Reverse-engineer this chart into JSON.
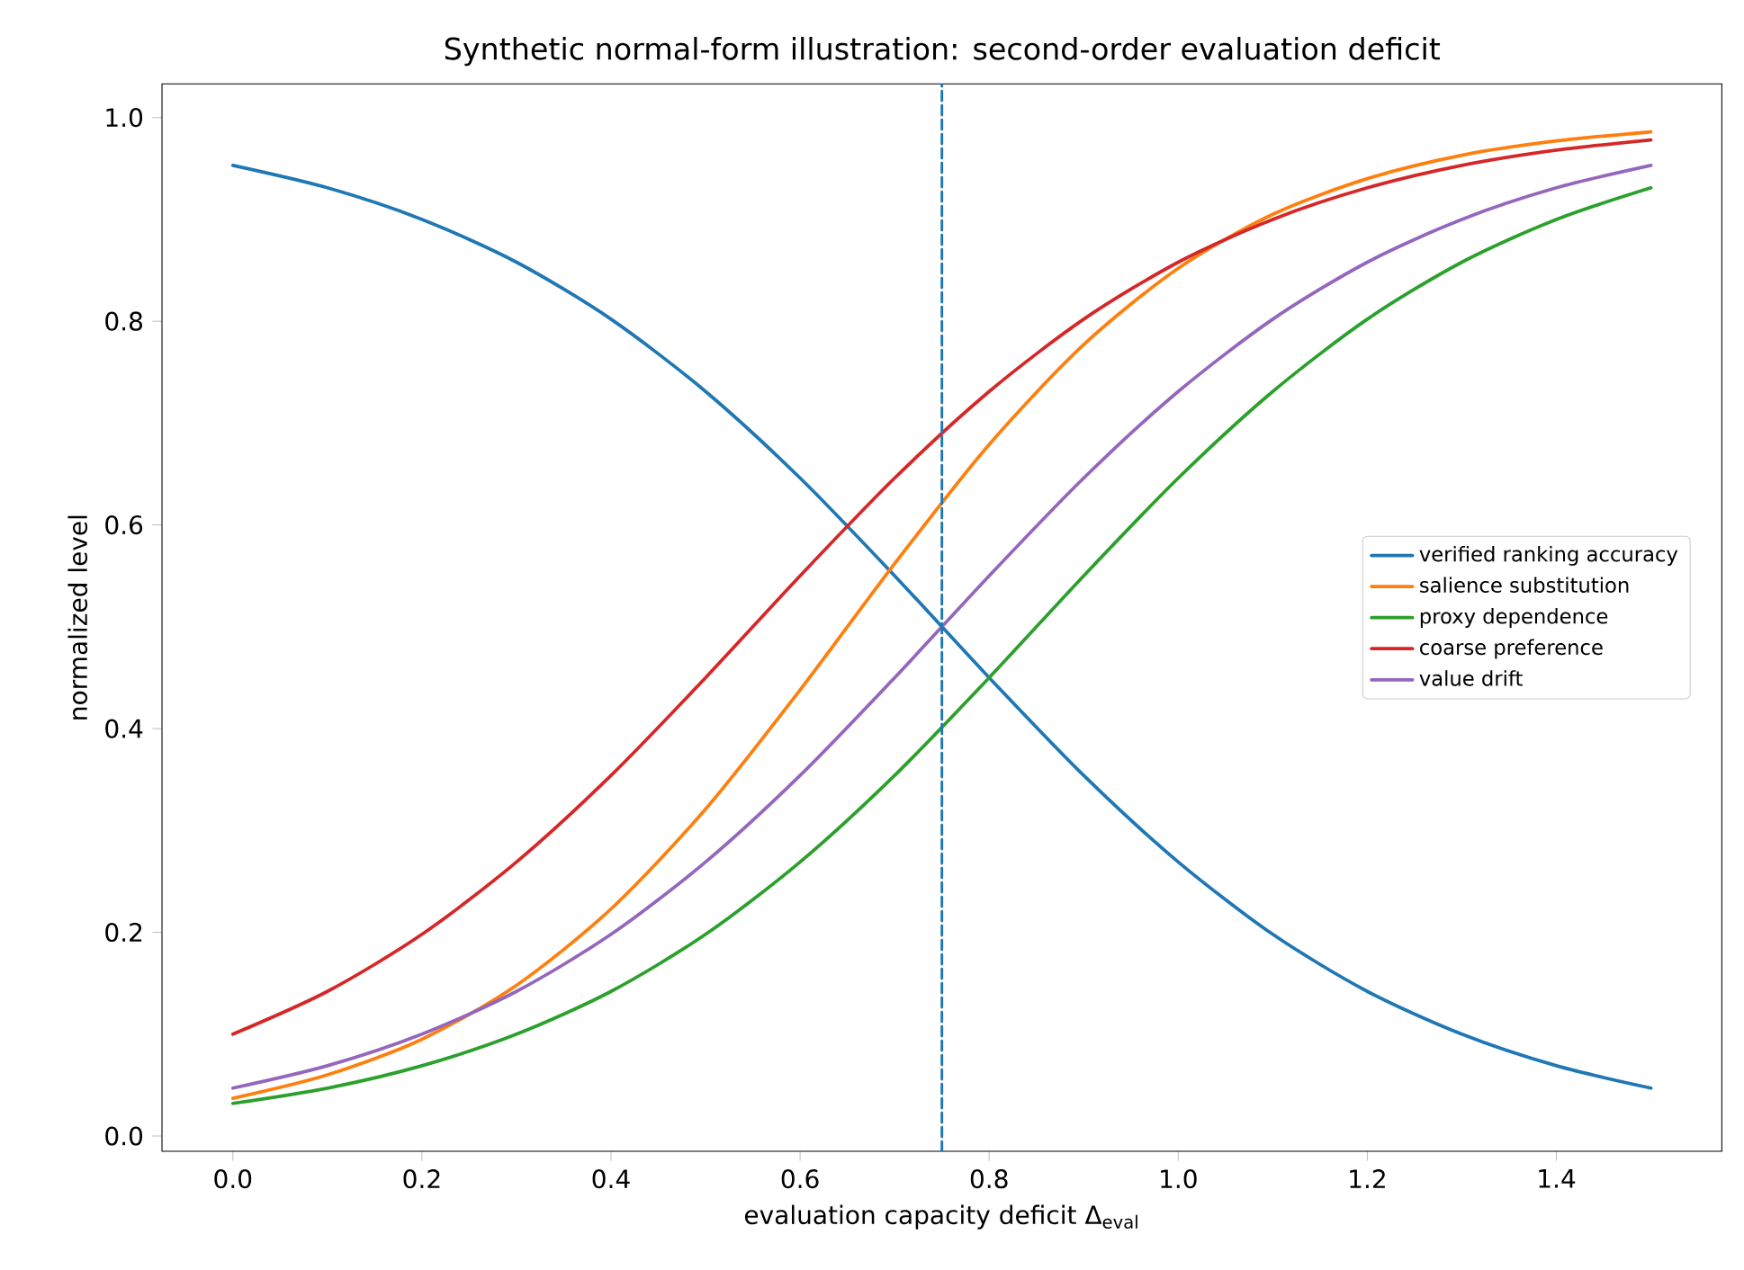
{
  "chart_data": {
    "type": "line",
    "title": "Synthetic normal-form illustration: second-order evaluation deficit",
    "xlabel": "evaluation capacity deficit Δ$_{eval}$",
    "ylabel": "normalized level",
    "x": [
      0,
      0.1,
      0.2,
      0.3,
      0.4,
      0.5,
      0.6,
      0.7,
      0.8,
      0.9,
      1.0,
      1.1,
      1.2,
      1.3,
      1.4,
      1.5
    ],
    "series": [
      {
        "name": "verified ranking accuracy",
        "color": "#1f77b4",
        "values": [
          0.953,
          0.931,
          0.9,
          0.858,
          0.802,
          0.731,
          0.646,
          0.55,
          0.45,
          0.354,
          0.269,
          0.198,
          0.142,
          0.1,
          0.069,
          0.047
        ]
      },
      {
        "name": "salience substitution",
        "color": "#ff7f0e",
        "values": [
          0.037,
          0.06,
          0.095,
          0.148,
          0.223,
          0.321,
          0.438,
          0.562,
          0.679,
          0.777,
          0.852,
          0.905,
          0.94,
          0.963,
          0.977,
          0.986
        ]
      },
      {
        "name": "proxy dependence",
        "color": "#2ca02c",
        "values": [
          0.032,
          0.047,
          0.069,
          0.1,
          0.142,
          0.198,
          0.269,
          0.354,
          0.45,
          0.55,
          0.646,
          0.731,
          0.802,
          0.858,
          0.9,
          0.931
        ]
      },
      {
        "name": "coarse preference",
        "color": "#d62728",
        "values": [
          0.1,
          0.142,
          0.198,
          0.269,
          0.354,
          0.45,
          0.55,
          0.646,
          0.731,
          0.802,
          0.858,
          0.9,
          0.931,
          0.953,
          0.968,
          0.978
        ]
      },
      {
        "name": "value drift",
        "color": "#9467bd",
        "values": [
          0.047,
          0.069,
          0.1,
          0.142,
          0.198,
          0.269,
          0.354,
          0.45,
          0.55,
          0.646,
          0.731,
          0.802,
          0.858,
          0.9,
          0.931,
          0.953
        ]
      }
    ],
    "xlim": [
      -0.075,
      1.575
    ],
    "ylim": [
      -0.015,
      1.033
    ],
    "xticks": [
      {
        "value": 0,
        "label": "0.0"
      },
      0.2,
      0.4,
      0.6,
      0.8,
      {
        "value": 1.0,
        "label": "1.0"
      },
      1.2,
      1.4
    ],
    "yticks": [
      {
        "value": 0,
        "label": "0.0"
      },
      0.2,
      0.4,
      0.6,
      0.8,
      {
        "value": 1.0,
        "label": "1.0"
      }
    ],
    "ref_lines": [
      {
        "axis": "x",
        "value": 0.75,
        "color": "#1f77b4",
        "line_style": "dashed"
      }
    ],
    "legend": "right",
    "grid": false
  }
}
